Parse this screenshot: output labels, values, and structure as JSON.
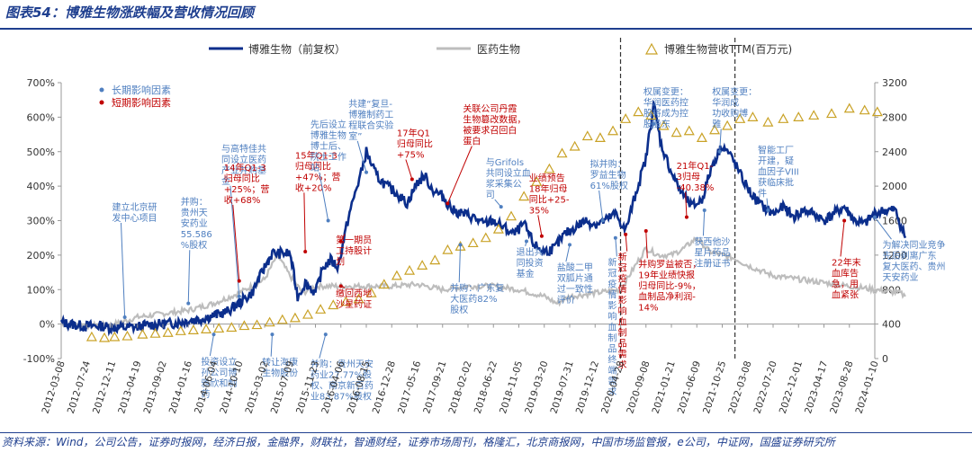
{
  "page": {
    "title": "图表54：博雅生物涨跌幅及营收情况回顾",
    "source": "资料来源：Wind，公司公告，证券时报网，经济日报，金融界，财联社，智通财经，证券市场周刊，格隆汇，北京商报网，中国市场监管报，e公司，中证网，国盛证券研究所"
  },
  "colors": {
    "boya": "#0b2e8c",
    "pharma": "#bdbdbd",
    "revenue": "#c9a227",
    "long_term": "#4f7fc0",
    "short_term": "#c00000",
    "navy_text": "#1f3f8f"
  },
  "chart_data": {
    "type": "line",
    "title": "",
    "xlabel": "",
    "y_left": {
      "label": "",
      "ticks": [
        "-100%",
        "0%",
        "100%",
        "200%",
        "300%",
        "400%",
        "500%",
        "600%",
        "700%"
      ],
      "lim": [
        -100,
        700
      ]
    },
    "y_right": {
      "label": "",
      "ticks": [
        "0",
        "400",
        "800",
        "1200",
        "1600",
        "2000",
        "2400",
        "2800",
        "3200"
      ],
      "lim": [
        0,
        3200
      ]
    },
    "x_ticks": [
      "2012-03-08",
      "2012-07-24",
      "2012-12-11",
      "2013-04-19",
      "2013-09-02",
      "2014-01-16",
      "2014-06-04",
      "2014-10-10",
      "2015-03-02",
      "2015-07-09",
      "2015-11-23",
      "2016-04-06",
      "2016-08-15",
      "2016-12-28",
      "2017-05-16",
      "2017-09-21",
      "2018-02-02",
      "2018-06-22",
      "2018-11-05",
      "2019-03-20",
      "2019-07-31",
      "2019-12-12",
      "2020-04-28",
      "2020-09-08",
      "2021-01-21",
      "2021-06-09",
      "2021-10-25",
      "2022-03-08",
      "2022-07-20",
      "2022-12-01",
      "2023-04-17",
      "2023-08-28",
      "2024-01-10"
    ],
    "legend": {
      "placement": "top",
      "entries": [
        "博雅生物（前复权）",
        "医药生物",
        "博雅生物营收TTM(百万元)"
      ]
    },
    "grid": false,
    "phase_dividers": [
      22,
      26.5
    ],
    "series": [
      {
        "name": "博雅生物（前复权）",
        "axis": "left",
        "points": [
          [
            0,
            5
          ],
          [
            0.5,
            -2
          ],
          [
            1,
            -6
          ],
          [
            1.5,
            -5
          ],
          [
            2,
            -10
          ],
          [
            2.5,
            -10
          ],
          [
            3,
            -8
          ],
          [
            3.5,
            -2
          ],
          [
            4,
            0
          ],
          [
            4.5,
            3
          ],
          [
            5,
            10
          ],
          [
            5.5,
            15
          ],
          [
            6,
            25
          ],
          [
            6.5,
            35
          ],
          [
            7,
            60
          ],
          [
            7.5,
            90
          ],
          [
            8,
            165
          ],
          [
            8.3,
            205
          ],
          [
            9,
            205
          ],
          [
            9.3,
            80
          ],
          [
            9.6,
            120
          ],
          [
            10,
            90
          ],
          [
            10.3,
            165
          ],
          [
            10.6,
            185
          ],
          [
            10.9,
            165
          ],
          [
            11,
            205
          ],
          [
            11.3,
            310
          ],
          [
            11.6,
            390
          ],
          [
            11.8,
            440
          ],
          [
            12,
            500
          ],
          [
            12.4,
            430
          ],
          [
            12.8,
            400
          ],
          [
            13.2,
            380
          ],
          [
            13.6,
            350
          ],
          [
            14,
            410
          ],
          [
            14.3,
            430
          ],
          [
            14.6,
            390
          ],
          [
            15,
            370
          ],
          [
            15.4,
            330
          ],
          [
            15.8,
            320
          ],
          [
            16.2,
            310
          ],
          [
            16.6,
            290
          ],
          [
            17,
            300
          ],
          [
            17.4,
            280
          ],
          [
            17.8,
            260
          ],
          [
            18.2,
            290
          ],
          [
            18.6,
            230
          ],
          [
            19,
            210
          ],
          [
            19.4,
            220
          ],
          [
            19.8,
            260
          ],
          [
            20.2,
            280
          ],
          [
            20.6,
            300
          ],
          [
            21,
            290
          ],
          [
            21.4,
            300
          ],
          [
            21.8,
            320
          ],
          [
            22.2,
            270
          ],
          [
            22.6,
            380
          ],
          [
            23,
            480
          ],
          [
            23.3,
            640
          ],
          [
            23.6,
            520
          ],
          [
            24,
            440
          ],
          [
            24.4,
            380
          ],
          [
            24.8,
            340
          ],
          [
            25.2,
            360
          ],
          [
            25.6,
            460
          ],
          [
            26,
            520
          ],
          [
            26.4,
            480
          ],
          [
            26.8,
            420
          ],
          [
            27.2,
            370
          ],
          [
            27.6,
            340
          ],
          [
            28,
            320
          ],
          [
            28.4,
            340
          ],
          [
            28.8,
            310
          ],
          [
            29.2,
            330
          ],
          [
            29.6,
            320
          ],
          [
            30,
            300
          ],
          [
            30.4,
            320
          ],
          [
            30.8,
            340
          ],
          [
            31.2,
            300
          ],
          [
            31.6,
            290
          ],
          [
            32,
            320
          ],
          [
            32.4,
            330
          ],
          [
            32.8,
            330
          ],
          [
            33.2,
            250
          ]
        ]
      },
      {
        "name": "医药生物",
        "axis": "left",
        "points": [
          [
            0,
            0
          ],
          [
            1,
            -5
          ],
          [
            2,
            -3
          ],
          [
            3,
            20
          ],
          [
            4,
            30
          ],
          [
            5,
            40
          ],
          [
            6,
            60
          ],
          [
            7,
            90
          ],
          [
            8,
            130
          ],
          [
            8.5,
            200
          ],
          [
            9,
            140
          ],
          [
            9.5,
            90
          ],
          [
            10,
            110
          ],
          [
            11,
            110
          ],
          [
            12,
            110
          ],
          [
            13,
            110
          ],
          [
            14,
            115
          ],
          [
            15,
            100
          ],
          [
            16,
            110
          ],
          [
            17,
            110
          ],
          [
            18,
            100
          ],
          [
            19,
            80
          ],
          [
            19.5,
            60
          ],
          [
            20,
            80
          ],
          [
            21,
            90
          ],
          [
            22,
            100
          ],
          [
            22.5,
            160
          ],
          [
            23,
            220
          ],
          [
            23.5,
            200
          ],
          [
            24,
            200
          ],
          [
            24.5,
            220
          ],
          [
            25,
            250
          ],
          [
            25.5,
            210
          ],
          [
            26,
            200
          ],
          [
            26.5,
            190
          ],
          [
            27,
            170
          ],
          [
            28,
            140
          ],
          [
            29,
            130
          ],
          [
            30,
            120
          ],
          [
            31,
            110
          ],
          [
            32,
            100
          ],
          [
            33,
            90
          ],
          [
            33.2,
            80
          ]
        ]
      },
      {
        "name": "博雅生物营收TTM(百万元)",
        "axis": "right",
        "type": "scatter",
        "points": [
          [
            1.2,
            250
          ],
          [
            1.7,
            240
          ],
          [
            2.1,
            250
          ],
          [
            2.6,
            260
          ],
          [
            3.2,
            280
          ],
          [
            3.7,
            290
          ],
          [
            4.2,
            300
          ],
          [
            4.7,
            320
          ],
          [
            5.2,
            330
          ],
          [
            5.7,
            340
          ],
          [
            6.2,
            350
          ],
          [
            6.7,
            360
          ],
          [
            7.2,
            380
          ],
          [
            7.7,
            390
          ],
          [
            8.2,
            420
          ],
          [
            8.7,
            450
          ],
          [
            9.2,
            470
          ],
          [
            9.7,
            510
          ],
          [
            10.2,
            570
          ],
          [
            10.7,
            620
          ],
          [
            11.2,
            660
          ],
          [
            11.7,
            690
          ],
          [
            12.2,
            760
          ],
          [
            12.7,
            860
          ],
          [
            13.2,
            960
          ],
          [
            13.7,
            1020
          ],
          [
            14.2,
            1080
          ],
          [
            14.7,
            1140
          ],
          [
            15.2,
            1260
          ],
          [
            15.7,
            1300
          ],
          [
            16.2,
            1340
          ],
          [
            16.7,
            1400
          ],
          [
            17.2,
            1500
          ],
          [
            17.7,
            1650
          ],
          [
            18.2,
            1880
          ],
          [
            18.7,
            2050
          ],
          [
            19.2,
            2200
          ],
          [
            19.7,
            2380
          ],
          [
            20.2,
            2460
          ],
          [
            20.7,
            2580
          ],
          [
            21.2,
            2560
          ],
          [
            21.7,
            2640
          ],
          [
            22.2,
            2780
          ],
          [
            22.7,
            2860
          ],
          [
            23.2,
            2820
          ],
          [
            23.7,
            2700
          ],
          [
            24.2,
            2620
          ],
          [
            24.7,
            2640
          ],
          [
            25.2,
            2560
          ],
          [
            25.7,
            2650
          ],
          [
            26.2,
            2700
          ],
          [
            26.7,
            2780
          ],
          [
            27.2,
            2800
          ],
          [
            27.8,
            2740
          ],
          [
            28.4,
            2780
          ],
          [
            29.0,
            2800
          ],
          [
            29.6,
            2820
          ],
          [
            30.3,
            2840
          ],
          [
            31.0,
            2900
          ],
          [
            31.6,
            2880
          ],
          [
            32.1,
            2860
          ]
        ]
      }
    ]
  },
  "legend_text": {
    "boya": "博雅生物（前复权）",
    "pharma": "医药生物",
    "revenue": "博雅生物营收TTM(百万元)",
    "long_term": "长期影响因素",
    "short_term": "短期影响因素"
  },
  "annotations": [
    {
      "kind": "long",
      "lines": [
        "建立北京研",
        "发中心项目"
      ],
      "x": 2.0,
      "y": 330,
      "ax": 2.5,
      "ay": 20
    },
    {
      "kind": "long",
      "lines": [
        "并购：",
        "贵州天",
        "安药业",
        "55.586",
        "%股权"
      ],
      "x": 4.7,
      "y": 345,
      "ax": 5.0,
      "ay": 60
    },
    {
      "kind": "long",
      "lines": [
        "与高特佳共",
        "同设立医药",
        "产业并购基",
        "金"
      ],
      "x": 6.3,
      "y": 500,
      "ax": 7.0,
      "ay": 80
    },
    {
      "kind": "short",
      "lines": [
        "14年Q1-3",
        "归母同比",
        "+25%；营",
        "收+68%"
      ],
      "x": 6.4,
      "y": 445,
      "ax": 7.0,
      "ay": 125
    },
    {
      "kind": "short",
      "lines": [
        "15年Q1-3",
        "归母同比",
        "+47%；营",
        "收+20%"
      ],
      "x": 9.2,
      "y": 480,
      "ax": 9.6,
      "ay": 210
    },
    {
      "kind": "long",
      "lines": [
        "先后设立",
        "博雅生物",
        "博士后、",
        "院士工作",
        "站"
      ],
      "x": 9.8,
      "y": 570,
      "ax": 10.5,
      "ay": 300
    },
    {
      "kind": "long",
      "lines": [
        "共建“复旦-",
        "博雅制药工",
        "程联合实验",
        "室”"
      ],
      "x": 11.3,
      "y": 630,
      "ax": 12.0,
      "ay": 440
    },
    {
      "kind": "short",
      "lines": [
        "17年Q1",
        "归母同比",
        "+75%"
      ],
      "x": 13.2,
      "y": 545,
      "ax": 13.8,
      "ay": 420
    },
    {
      "kind": "short",
      "lines": [
        "关联公司丹霞",
        "生物篡改数据，",
        "被要求召回白",
        "蛋白"
      ],
      "x": 15.8,
      "y": 615,
      "ax": 15.2,
      "ay": 350
    },
    {
      "kind": "short",
      "lines": [
        "第一期员",
        "工持股计",
        "划"
      ],
      "x": 10.8,
      "y": 235,
      "ax": 11.0,
      "ay": 240
    },
    {
      "kind": "short",
      "lines": [
        "缴回西地",
        "沙星药证"
      ],
      "x": 10.8,
      "y": 80,
      "ax": 11.0,
      "ay": 110
    },
    {
      "kind": "long",
      "lines": [
        "转让海康",
        "生物股份"
      ],
      "x": 7.9,
      "y": -120,
      "ax": 8.3,
      "ay": -30
    },
    {
      "kind": "long",
      "lines": [
        "投资设立",
        "孙公司博",
        "雅欣和制",
        "药"
      ],
      "x": 5.5,
      "y": -118,
      "ax": 6.0,
      "ay": -30
    },
    {
      "kind": "long",
      "lines": [
        "并购：贵州天安",
        "药业27.77%股",
        "权、南京新百药",
        "业83.87%股权"
      ],
      "x": 9.8,
      "y": -125,
      "ax": 10.4,
      "ay": -30
    },
    {
      "kind": "long",
      "lines": [
        "与Grifols",
        "共同设立血",
        "浆采集公",
        "司"
      ],
      "x": 16.7,
      "y": 460,
      "ax": 17.3,
      "ay": 340
    },
    {
      "kind": "long",
      "lines": [
        "并购：广东复",
        "大医药82%",
        "股权"
      ],
      "x": 15.3,
      "y": 95,
      "ax": 15.7,
      "ay": 230
    },
    {
      "kind": "short",
      "lines": [
        "业绩预告",
        "18年归母",
        "同比+25-",
        "35%"
      ],
      "x": 18.4,
      "y": 415,
      "ax": 18.9,
      "ay": 255
    },
    {
      "kind": "long",
      "lines": [
        "拟并购：",
        "罗益生物",
        "61%股权"
      ],
      "x": 20.8,
      "y": 455,
      "ax": 21.3,
      "ay": 300
    },
    {
      "kind": "long",
      "lines": [
        "退出共",
        "同投资",
        "基金"
      ],
      "x": 17.9,
      "y": 200,
      "ax": 18.3,
      "ay": 240
    },
    {
      "kind": "long",
      "lines": [
        "盐酸二甲",
        "双胍片通",
        "过一致性",
        "评价"
      ],
      "x": 19.5,
      "y": 155,
      "ax": 20.0,
      "ay": 230
    },
    {
      "kind": "short",
      "lines": [
        "新",
        "冠",
        "疫",
        "情",
        "影",
        "响",
        "血",
        "制",
        "品",
        "需",
        "求"
      ],
      "x": 21.9,
      "y": 185,
      "ax": 22.2,
      "ay": 260
    },
    {
      "kind": "long",
      "lines": [
        "新",
        "冠",
        "疫",
        "情",
        "影",
        "响",
        "血",
        "制",
        "品",
        "终",
        "端",
        "需",
        "求"
      ],
      "x": 21.5,
      "y": 170,
      "ax": 21.8,
      "ay": 250
    },
    {
      "kind": "long",
      "lines": [
        "权属变更：",
        "华润医药控",
        "股将成为控",
        "股股东"
      ],
      "x": 22.9,
      "y": 665,
      "ax": 23.3,
      "ay": 580
    },
    {
      "kind": "long",
      "lines": [
        "权属变更：",
        "华润成",
        "功收购博",
        "雅"
      ],
      "x": 25.6,
      "y": 665,
      "ax": 25.9,
      "ay": 500
    },
    {
      "kind": "short",
      "lines": [
        "21年Q1-",
        "3归母",
        "-40.38%"
      ],
      "x": 24.2,
      "y": 450,
      "ax": 24.6,
      "ay": 310
    },
    {
      "kind": "short",
      "lines": [
        "并购罗益被否，",
        "19年业绩快报",
        "归母同比-9%，",
        "血制品净利润-",
        "14%"
      ],
      "x": 22.7,
      "y": 165,
      "ax": 23.0,
      "ay": 270
    },
    {
      "kind": "long",
      "lines": [
        "获西他沙",
        "星片药品",
        "注册证书"
      ],
      "x": 24.9,
      "y": 230,
      "ax": 25.3,
      "ay": 330
    },
    {
      "kind": "long",
      "lines": [
        "智能工厂",
        "开建，疑",
        "血因子VIII",
        "获临床批",
        "件"
      ],
      "x": 27.4,
      "y": 495,
      "ax": 27.8,
      "ay": 330
    },
    {
      "kind": "short",
      "lines": [
        "22年末",
        "血库告",
        "急，用",
        "血紧张"
      ],
      "x": 30.3,
      "y": 170,
      "ax": 30.8,
      "ay": 300
    },
    {
      "kind": "long",
      "lines": [
        "为解决同业竞争",
        "先后剥离广东",
        "复大医药、贵州",
        "天安药业"
      ],
      "x": 32.3,
      "y": 220,
      "ax": 32.0,
      "ay": 310
    }
  ]
}
